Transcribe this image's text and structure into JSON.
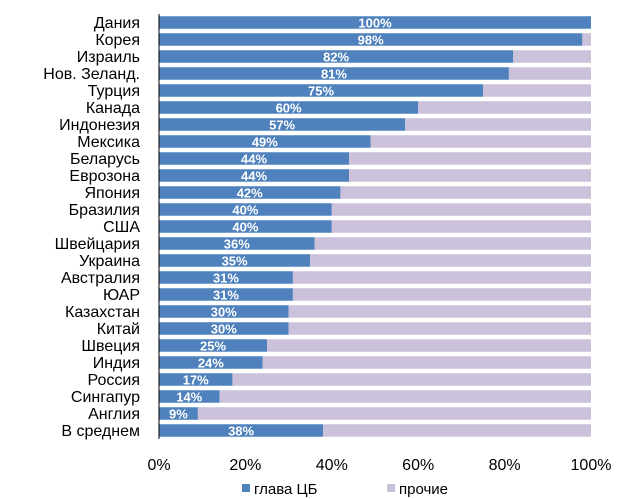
{
  "chart_data": {
    "type": "bar",
    "orientation": "horizontal",
    "stacked": "percent",
    "categories": [
      "Дания",
      "Корея",
      "Израиль",
      "Нов. Зеланд.",
      "Турция",
      "Канада",
      "Индонезия",
      "Мексика",
      "Беларусь",
      "Еврозона",
      "Япония",
      "Бразилия",
      "США",
      "Швейцария",
      "Украина",
      "Австралия",
      "ЮАР",
      "Казахстан",
      "Китай",
      "Швеция",
      "Индия",
      "Россия",
      "Сингапур",
      "Англия",
      "В среднем"
    ],
    "series": [
      {
        "name": "глава ЦБ",
        "color": "#4f81bd",
        "values": [
          100,
          98,
          82,
          81,
          75,
          60,
          57,
          49,
          44,
          44,
          42,
          40,
          40,
          36,
          35,
          31,
          31,
          30,
          30,
          25,
          24,
          17,
          14,
          9,
          38
        ],
        "labels": [
          "100%",
          "98%",
          "82%",
          "81%",
          "75%",
          "60%",
          "57%",
          "49%",
          "44%",
          "44%",
          "42%",
          "40%",
          "40%",
          "36%",
          "35%",
          "31%",
          "31%",
          "30%",
          "30%",
          "25%",
          "24%",
          "17%",
          "14%",
          "9%",
          "38%"
        ]
      },
      {
        "name": "прочие",
        "color": "#ccc1da",
        "values": [
          0,
          2,
          18,
          19,
          25,
          40,
          43,
          51,
          56,
          56,
          58,
          60,
          60,
          64,
          65,
          69,
          69,
          70,
          70,
          75,
          76,
          83,
          86,
          91,
          62
        ]
      }
    ],
    "xlim": [
      0,
      100
    ],
    "xticks": [
      "0%",
      "20%",
      "40%",
      "60%",
      "80%",
      "100%"
    ],
    "grid": false,
    "legend_position": "bottom"
  }
}
